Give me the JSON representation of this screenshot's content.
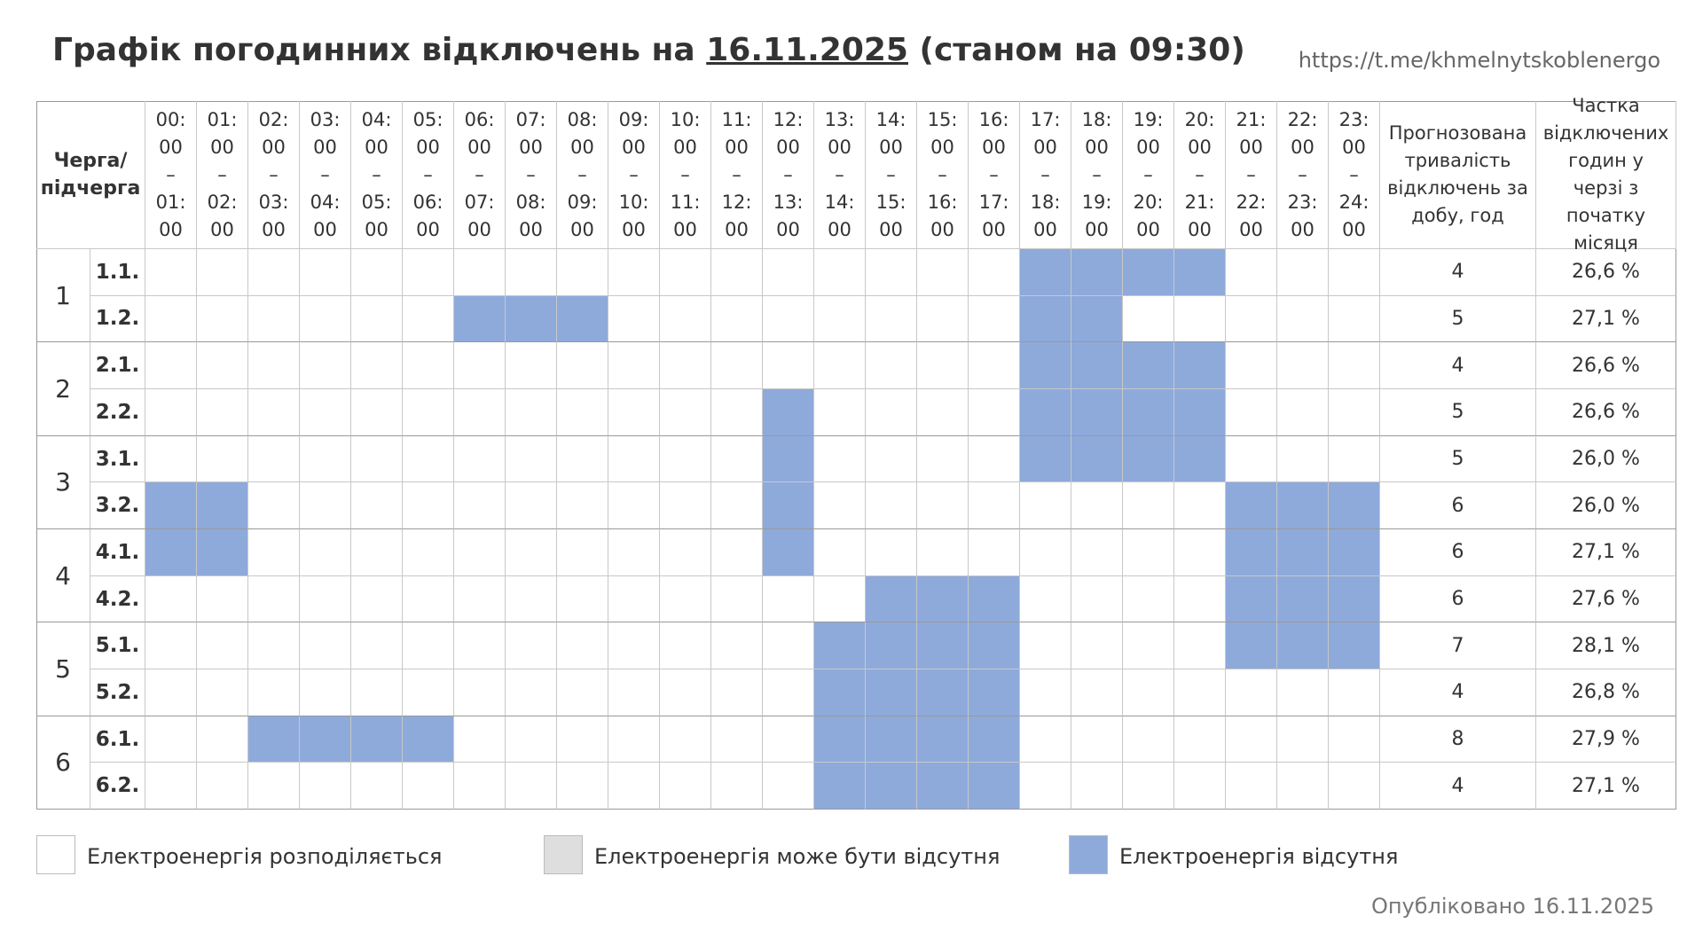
{
  "header": {
    "title": [
      "Графік погодинних відключень на",
      "16.11.2025",
      "(станом на 09:30)"
    ],
    "link": "https://t.me/khmelnytskoblenergo"
  },
  "table": {
    "queue_header": "Черга/\nпідчерга",
    "hours": [
      "00:\n00\n–\n01:\n00",
      "01:\n00\n–\n02:\n00",
      "02:\n00\n–\n03:\n00",
      "03:\n00\n–\n04:\n00",
      "04:\n00\n–\n05:\n00",
      "05:\n00\n–\n06:\n00",
      "06:\n00\n–\n07:\n00",
      "07:\n00\n–\n08:\n00",
      "08:\n00\n–\n09:\n00",
      "09:\n00\n–\n10:\n00",
      "10:\n00\n–\n11:\n00",
      "11:\n00\n–\n12:\n00",
      "12:\n00\n–\n13:\n00",
      "13:\n00\n–\n14:\n00",
      "14:\n00\n–\n15:\n00",
      "15:\n00\n–\n16:\n00",
      "16:\n00\n–\n17:\n00",
      "17:\n00\n–\n18:\n00",
      "18:\n00\n–\n19:\n00",
      "19:\n00\n–\n20:\n00",
      "20:\n00\n–\n21:\n00",
      "21:\n00\n–\n22:\n00",
      "22:\n00\n–\n23:\n00",
      "23:\n00\n–\n24:\n00"
    ],
    "duration_header": "Прогнозована тривалість відключень за добу, год",
    "share_header": "Частка відключених годин у черзі з початку місяця",
    "queues": [
      "1",
      "2",
      "3",
      "4",
      "5",
      "6"
    ],
    "rows": [
      {
        "sub": "1.1.",
        "cells": [
          0,
          0,
          0,
          0,
          0,
          0,
          0,
          0,
          0,
          0,
          0,
          0,
          0,
          0,
          0,
          0,
          0,
          2,
          2,
          2,
          2,
          0,
          0,
          0
        ],
        "duration": "4",
        "share": "26,6 %"
      },
      {
        "sub": "1.2.",
        "cells": [
          0,
          0,
          0,
          0,
          0,
          0,
          2,
          2,
          2,
          0,
          0,
          0,
          0,
          0,
          0,
          0,
          0,
          2,
          2,
          0,
          0,
          0,
          0,
          0
        ],
        "duration": "5",
        "share": "27,1 %"
      },
      {
        "sub": "2.1.",
        "cells": [
          0,
          0,
          0,
          0,
          0,
          0,
          0,
          0,
          0,
          0,
          0,
          0,
          0,
          0,
          0,
          0,
          0,
          2,
          2,
          2,
          2,
          0,
          0,
          0
        ],
        "duration": "4",
        "share": "26,6 %"
      },
      {
        "sub": "2.2.",
        "cells": [
          0,
          0,
          0,
          0,
          0,
          0,
          0,
          0,
          0,
          0,
          0,
          0,
          2,
          0,
          0,
          0,
          0,
          2,
          2,
          2,
          2,
          0,
          0,
          0
        ],
        "duration": "5",
        "share": "26,6 %"
      },
      {
        "sub": "3.1.",
        "cells": [
          0,
          0,
          0,
          0,
          0,
          0,
          0,
          0,
          0,
          0,
          0,
          0,
          2,
          0,
          0,
          0,
          0,
          2,
          2,
          2,
          2,
          0,
          0,
          0
        ],
        "duration": "5",
        "share": "26,0 %"
      },
      {
        "sub": "3.2.",
        "cells": [
          2,
          2,
          0,
          0,
          0,
          0,
          0,
          0,
          0,
          0,
          0,
          0,
          2,
          0,
          0,
          0,
          0,
          0,
          0,
          0,
          0,
          2,
          2,
          2
        ],
        "duration": "6",
        "share": "26,0 %"
      },
      {
        "sub": "4.1.",
        "cells": [
          2,
          2,
          0,
          0,
          0,
          0,
          0,
          0,
          0,
          0,
          0,
          0,
          2,
          0,
          0,
          0,
          0,
          0,
          0,
          0,
          0,
          2,
          2,
          2
        ],
        "duration": "6",
        "share": "27,1 %"
      },
      {
        "sub": "4.2.",
        "cells": [
          0,
          0,
          0,
          0,
          0,
          0,
          0,
          0,
          0,
          0,
          0,
          0,
          0,
          0,
          2,
          2,
          2,
          0,
          0,
          0,
          0,
          2,
          2,
          2
        ],
        "duration": "6",
        "share": "27,6 %"
      },
      {
        "sub": "5.1.",
        "cells": [
          0,
          0,
          0,
          0,
          0,
          0,
          0,
          0,
          0,
          0,
          0,
          0,
          0,
          2,
          2,
          2,
          2,
          0,
          0,
          0,
          0,
          2,
          2,
          2
        ],
        "duration": "7",
        "share": "28,1 %"
      },
      {
        "sub": "5.2.",
        "cells": [
          0,
          0,
          0,
          0,
          0,
          0,
          0,
          0,
          0,
          0,
          0,
          0,
          0,
          2,
          2,
          2,
          2,
          0,
          0,
          0,
          0,
          0,
          0,
          0
        ],
        "duration": "4",
        "share": "26,8 %"
      },
      {
        "sub": "6.1.",
        "cells": [
          0,
          0,
          2,
          2,
          2,
          2,
          0,
          0,
          0,
          0,
          0,
          0,
          0,
          2,
          2,
          2,
          2,
          0,
          0,
          0,
          0,
          0,
          0,
          0
        ],
        "duration": "8",
        "share": "27,9 %"
      },
      {
        "sub": "6.2.",
        "cells": [
          0,
          0,
          0,
          0,
          0,
          0,
          0,
          0,
          0,
          0,
          0,
          0,
          0,
          2,
          2,
          2,
          2,
          0,
          0,
          0,
          0,
          0,
          0,
          0
        ],
        "duration": "4",
        "share": "27,1 %"
      }
    ]
  },
  "legend": [
    {
      "label": "Електроенергія розподіляється",
      "color": "#ffffff"
    },
    {
      "label": "Електроенергія може бути відсутня",
      "color": "#dedede"
    },
    {
      "label": "Електроенергія відсутня",
      "color": "#8eaadb"
    }
  ],
  "footer": "Опубліковано 16.11.2025"
}
